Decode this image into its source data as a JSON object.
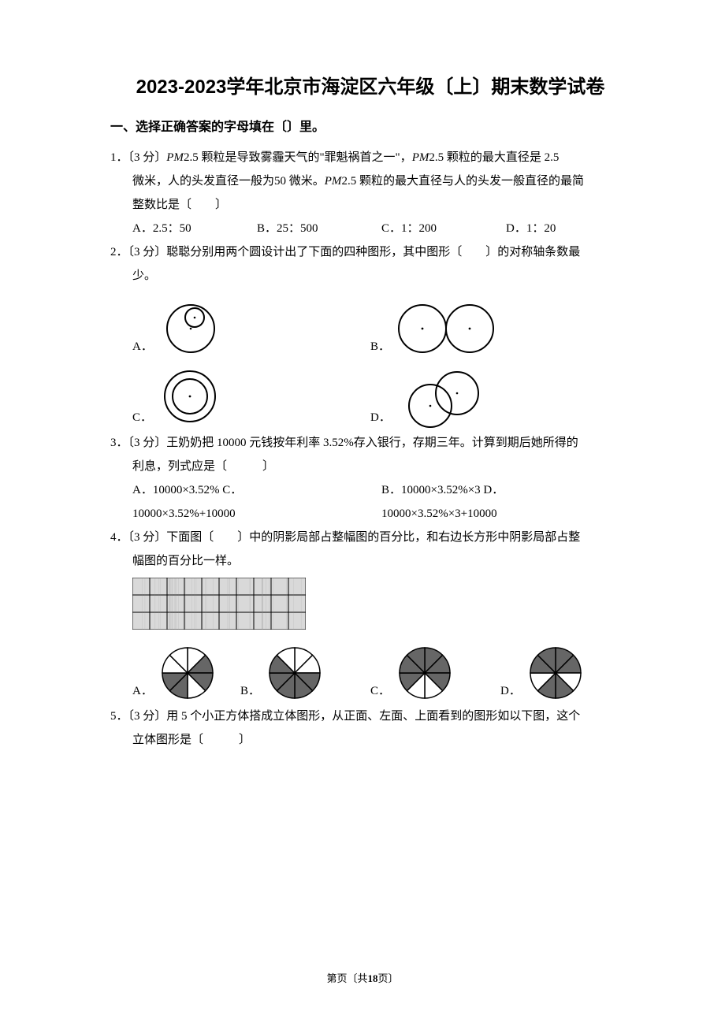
{
  "title": "2023-2023学年北京市海淀区六年级〔上〕期末数学试卷",
  "section1_heading": "一、选择正确答案的字母填在〔〕里。",
  "q1": {
    "stem_a": "1．〔3 分〕",
    "stem_b": "PM",
    "stem_c": "2.5 颗粒是导致雾霾天气的\"罪魁祸首之一\"，",
    "stem_d": "PM",
    "stem_e": "2.5 颗粒的最大直径是 2.5",
    "line2a": "微米，人的头发直径一般为50 微米。",
    "line2b": "PM",
    "line2c": "2.5 颗粒的最大直径与人的头发一般直径的最简",
    "line3": "整数比是〔　　〕",
    "optA": "A．2.5：50",
    "optB": "B．25：500",
    "optC": "C．1：200",
    "optD": "D．1：20"
  },
  "q2": {
    "stem": "2．〔3 分〕聪聪分别用两个圆设计出了下面的四种图形，其中图形〔　　〕的对称轴条数最",
    "line2": "少。",
    "labA": "A．",
    "labB": "B．",
    "labC": "C．",
    "labD": "D．",
    "svg": {
      "stroke": "#000000",
      "fill": "#ffffff",
      "bg_stroke_width": 2
    }
  },
  "q3": {
    "stem": "3．〔3 分〕王奶奶把 10000 元钱按年利率 3.52%存入银行，存期三年。计算到期后她所得的",
    "line2": "利息，列式应是〔　　　〕",
    "colL1": "A．10000×3.52% C．",
    "colR1": "B．10000×3.52%×3 D．",
    "colL2": "10000×3.52%+10000",
    "colR2": "10000×3.52%×3+10000"
  },
  "q4": {
    "stem": "4．〔3 分〕下面图〔　　〕中的阴影局部占整幅图的百分比，和右边长方形中阴影局部占整",
    "line2": "幅图的百分比一样。",
    "labA": "A．",
    "labB": "B．",
    "labC": "C．",
    "labD": "D．",
    "grid": {
      "cols": 10,
      "rows": 3
    },
    "pies": {
      "A_shaded": [
        1,
        2,
        4,
        5
      ],
      "B_shaded": [
        2,
        3,
        4,
        5,
        6
      ],
      "C_shaded": [
        0,
        1,
        2,
        5,
        6,
        7
      ],
      "D_shaded": [
        0,
        1,
        3,
        4,
        6,
        7
      ]
    },
    "svg_colors": {
      "stroke": "#000",
      "fill_dark": "#666",
      "fill_light": "#fff"
    }
  },
  "q5": {
    "stem": "5．〔3 分〕用 5 个小正方体搭成立体图形，从正面、左面、上面看到的图形如以下图，这个",
    "line2": "立体图形是〔　　　〕"
  },
  "footer": {
    "left": "第页〔共",
    "bold": "18",
    "right": "页〕"
  }
}
